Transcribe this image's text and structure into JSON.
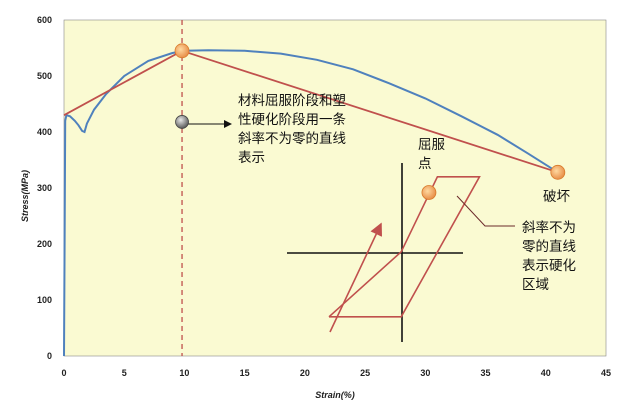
{
  "chart_data": {
    "type": "line",
    "xlabel": "Strain(%)",
    "ylabel": "Stress(MPa)",
    "xlim": [
      0,
      45
    ],
    "ylim": [
      0,
      600
    ],
    "x_ticks": [
      "0",
      "5",
      "10",
      "15",
      "20",
      "25",
      "30",
      "35",
      "40",
      "45"
    ],
    "y_ticks": [
      "0",
      "100",
      "200",
      "300",
      "400",
      "500",
      "600"
    ],
    "background_color": "#fafad2",
    "series": [
      {
        "color": "#4f81bd",
        "points": [
          [
            0,
            0
          ],
          [
            0.05,
            200
          ],
          [
            0.1,
            420
          ],
          [
            0.2,
            430
          ],
          [
            0.5,
            428
          ],
          [
            0.9,
            420
          ],
          [
            1.2,
            412
          ],
          [
            1.5,
            402
          ],
          [
            1.7,
            400
          ],
          [
            1.9,
            415
          ],
          [
            2.5,
            440
          ],
          [
            3.5,
            468
          ],
          [
            5,
            500
          ],
          [
            7,
            527
          ],
          [
            9,
            541
          ],
          [
            10,
            545
          ],
          [
            12,
            546
          ],
          [
            15,
            545
          ],
          [
            18,
            540
          ],
          [
            21,
            529
          ],
          [
            24,
            512
          ],
          [
            27,
            487
          ],
          [
            30,
            460
          ],
          [
            33,
            428
          ],
          [
            36,
            395
          ],
          [
            38.5,
            362
          ],
          [
            41,
            328
          ]
        ]
      }
    ],
    "approximation_line": {
      "color": "#c0504d",
      "points": [
        [
          0,
          430
        ],
        [
          9.8,
          545
        ],
        [
          41,
          328
        ]
      ]
    },
    "markers": [
      {
        "x": 9.8,
        "y": 545,
        "color": "#f4a460"
      },
      {
        "x": 41,
        "y": 328,
        "color": "#f4a460"
      },
      {
        "x": 30.3,
        "y": 292,
        "color": "#f4a460"
      },
      {
        "x": 9.8,
        "y": 418,
        "color": "#808080"
      }
    ],
    "reference_line": {
      "x": 9.8,
      "color": "#c0504d",
      "style": "dashed"
    },
    "annotations": {
      "note_main": [
        "材料屈服阶段和塑",
        "性硬化阶段用一条",
        "斜率不为零的直线",
        "表示"
      ],
      "yield_point": [
        "屈服",
        "点"
      ],
      "fracture": "破坏",
      "hardening": [
        "斜率不为",
        "零的直线",
        "表示硬化",
        "区域"
      ]
    },
    "inset": {
      "axes_color": "#111111",
      "loop_color": "#c0504d",
      "loop_points": [
        [
          22,
          70
        ],
        [
          28,
          70
        ],
        [
          34.5,
          320
        ],
        [
          31,
          320
        ],
        [
          28,
          186
        ],
        [
          22,
          70
        ]
      ],
      "arrow_color": "#c0504d"
    }
  }
}
